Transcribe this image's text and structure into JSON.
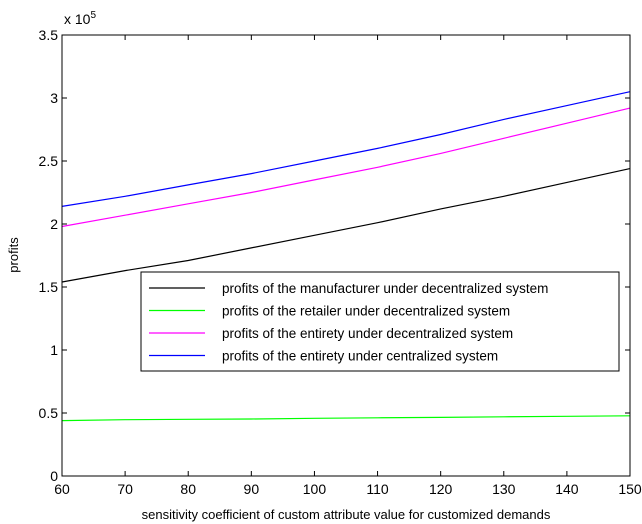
{
  "chart_data": {
    "type": "line",
    "title": "",
    "xlabel": "sensitivity coefficient of  custom attribute value for customized  demands",
    "ylabel": "profits",
    "y_multiplier_label": "x 10",
    "y_multiplier_exponent": "5",
    "xlim": [
      60,
      150
    ],
    "ylim": [
      0,
      3.5
    ],
    "x_ticks": [
      60,
      70,
      80,
      90,
      100,
      110,
      120,
      130,
      140,
      150
    ],
    "y_ticks": [
      0,
      0.5,
      1,
      1.5,
      2,
      2.5,
      3,
      3.5
    ],
    "y_tick_labels": [
      "0",
      "0.5",
      "1",
      "1.5",
      "2",
      "2.5",
      "3",
      "3.5"
    ],
    "grid": false,
    "legend_position": "center-right",
    "x": [
      60,
      70,
      80,
      90,
      100,
      110,
      120,
      130,
      140,
      150
    ],
    "series": [
      {
        "name": "profits of the manufacturer under decentralized system",
        "color": "#000000",
        "values": [
          1.54,
          1.63,
          1.71,
          1.81,
          1.91,
          2.01,
          2.12,
          2.22,
          2.33,
          2.44
        ]
      },
      {
        "name": "profits of the retailer under decentralized system",
        "color": "#00ff00",
        "values": [
          0.44,
          0.447,
          0.45,
          0.452,
          0.458,
          0.462,
          0.465,
          0.47,
          0.474,
          0.478
        ]
      },
      {
        "name": "profits of the entirety under decentralized system",
        "color": "#ff00ff",
        "values": [
          1.98,
          2.07,
          2.16,
          2.25,
          2.35,
          2.45,
          2.56,
          2.68,
          2.8,
          2.92
        ]
      },
      {
        "name": "profits of the entirety under centralized system",
        "color": "#0000ff",
        "values": [
          2.14,
          2.22,
          2.31,
          2.4,
          2.5,
          2.6,
          2.71,
          2.83,
          2.94,
          3.05
        ]
      }
    ]
  }
}
